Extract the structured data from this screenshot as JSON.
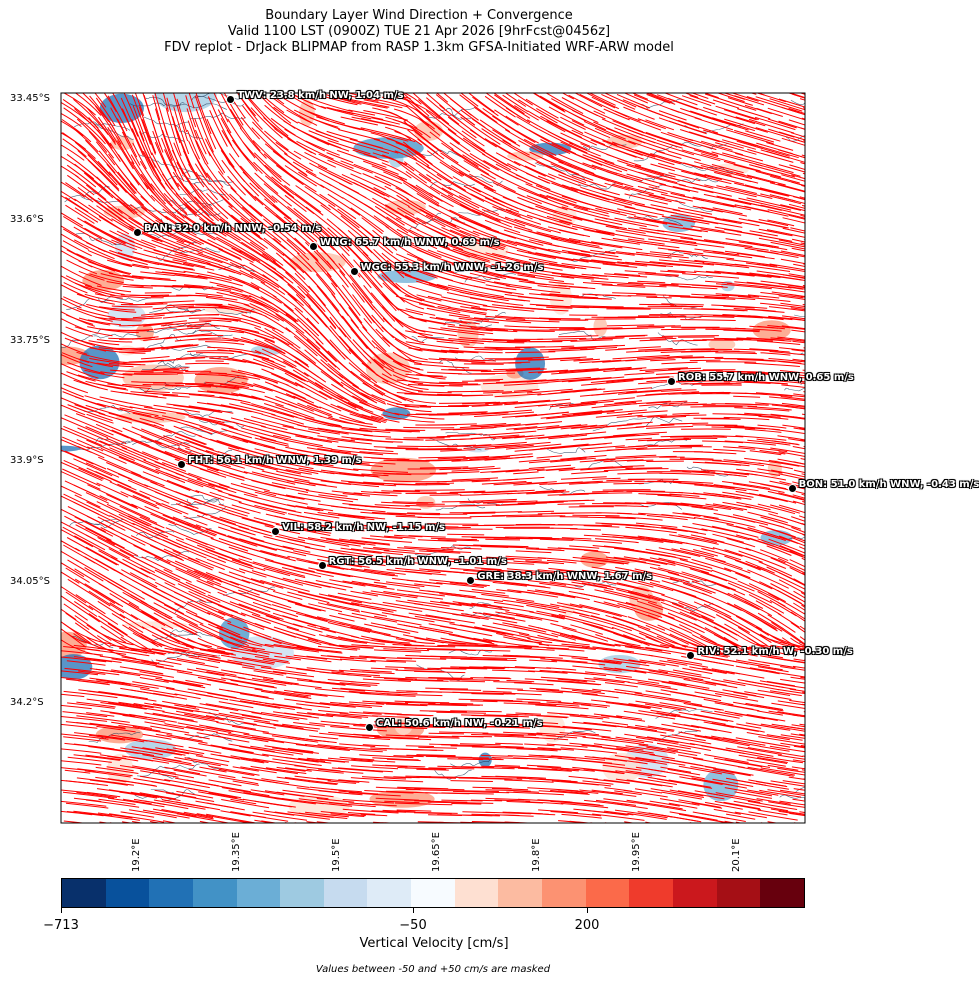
{
  "title": {
    "line1": "Boundary Layer Wind Direction + Convergence",
    "line2": "Valid 1100 LST (0900Z) TUE 21 Apr 2026 [9hrFcst@0456z]",
    "line3": "FDV replot - DrJack BLIPMAP from RASP 1.3km GFSA-Initiated WRF-ARW model"
  },
  "axes": {
    "lat_labels": [
      "33.45°S",
      "33.6°S",
      "33.75°S",
      "33.9°S",
      "34.05°S",
      "34.2°S"
    ],
    "lat_values": [
      -33.45,
      -33.6,
      -33.75,
      -33.9,
      -34.05,
      -34.2
    ],
    "lon_labels": [
      "19.2°E",
      "19.35°E",
      "19.5°E",
      "19.65°E",
      "19.8°E",
      "19.95°E",
      "20.1°E"
    ],
    "lon_values": [
      19.2,
      19.35,
      19.5,
      19.65,
      19.8,
      19.95,
      20.1
    ]
  },
  "stations": [
    {
      "code": "TWV",
      "label": "TWV: 23.8 km/h NW, 1.04 m/s",
      "lon": 19.34,
      "lat": -33.45
    },
    {
      "code": "BAN",
      "label": "BAN: 32.0 km/h NNW, -0.54 m/s",
      "lon": 19.2,
      "lat": -33.615
    },
    {
      "code": "WNG",
      "label": "WNG: 65.7 km/h WNW, 0.69 m/s",
      "lon": 19.464,
      "lat": -33.633
    },
    {
      "code": "WGC",
      "label": "WGC: 55.3 km/h WNW, -1.26 m/s",
      "lon": 19.525,
      "lat": -33.663
    },
    {
      "code": "ROB",
      "label": "ROB: 55.7 km/h WNW, 0.65 m/s",
      "lon": 20.001,
      "lat": -33.8
    },
    {
      "code": "FHT",
      "label": "FHT: 56.1 km/h WNW, 1.39 m/s",
      "lon": 19.266,
      "lat": -33.903
    },
    {
      "code": "BON",
      "label": "BON: 51.0 km/h WNW, -0.43 m/s",
      "lon": 20.182,
      "lat": -33.933
    },
    {
      "code": "VIL",
      "label": "VIL: 58.2 km/h NW, -1.15 m/s",
      "lon": 19.407,
      "lat": -33.986
    },
    {
      "code": "RGT",
      "label": "RGT: 56.5 km/h WNW, -1.01 m/s",
      "lon": 19.477,
      "lat": -34.029
    },
    {
      "code": "GRE",
      "label": "GRE: 38.3 km/h WNW, 1.67 m/s",
      "lon": 19.7,
      "lat": -34.047
    },
    {
      "code": "RIV",
      "label": "RIV: 52.1 km/h W, -0.30 m/s",
      "lon": 20.03,
      "lat": -34.14
    },
    {
      "code": "CAL",
      "label": "CAL: 50.6 km/h NW, -0.21 m/s",
      "lon": 19.548,
      "lat": -34.23
    }
  ],
  "colorbar": {
    "colors": [
      "#08306b",
      "#08519c",
      "#2171b5",
      "#4292c6",
      "#6baed6",
      "#9ecae1",
      "#c6dbef",
      "#deebf7",
      "#f7fbff",
      "#fee0d2",
      "#fcbba1",
      "#fc9272",
      "#fb6a4a",
      "#ef3b2c",
      "#cb181d",
      "#a50f15",
      "#67000d"
    ],
    "tick_labels": [
      "−713",
      "−50",
      "200"
    ],
    "title": "Vertical Velocity [cm/s]",
    "note": "Values between -50 and +50 cm/s are masked"
  },
  "colors": {
    "wind_streamlines": "#ff0000",
    "contours": "#1f3a5a"
  }
}
